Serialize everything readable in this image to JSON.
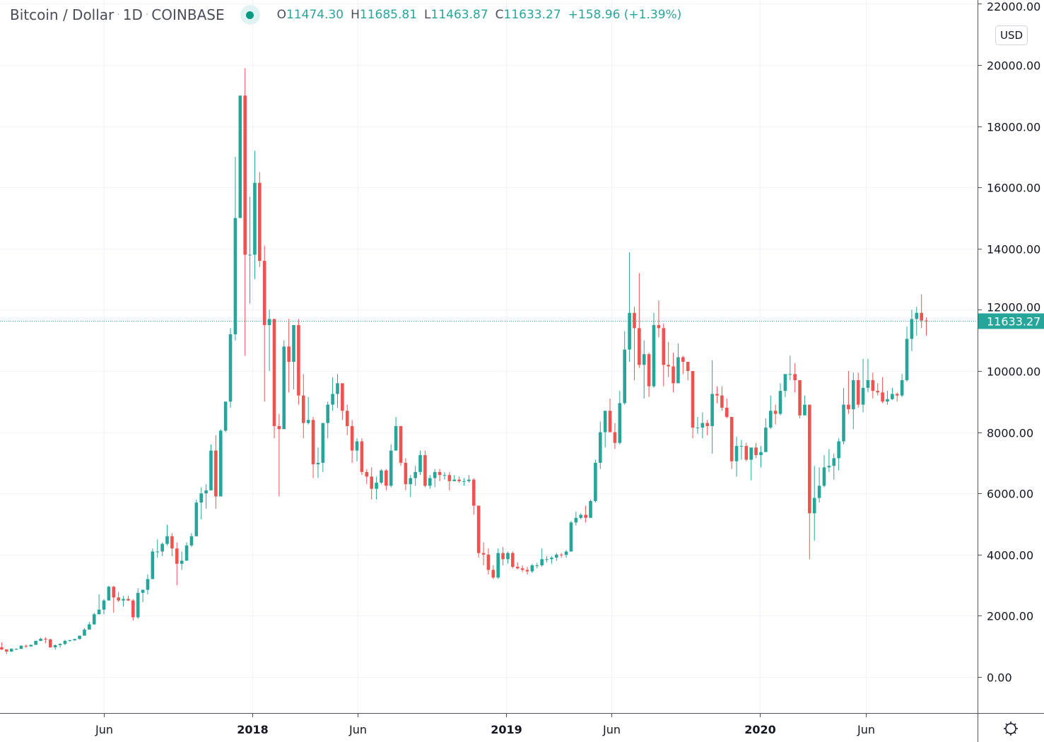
{
  "header": {
    "symbol": "Bitcoin / Dollar",
    "interval": "1D",
    "exchange": "COINBASE",
    "separator": "·",
    "market_status": "open",
    "ohlc": {
      "o_label": "O",
      "o": "11474.30",
      "h_label": "H",
      "h": "11685.81",
      "l_label": "L",
      "l": "11463.87",
      "c_label": "C",
      "c": "11633.27",
      "change": "+158.96 (+1.39%)"
    }
  },
  "currency_button": "USD",
  "settings_icon": "gear-icon",
  "colors": {
    "up": "#26a69a",
    "down": "#ef5350",
    "grid": "#f0f3fa",
    "axis": "#50535e"
  },
  "chart_data": {
    "type": "candlestick",
    "note_interval": "1W",
    "start": "2017-01-02",
    "first_open": 970,
    "ylim": [
      -1000,
      22000
    ],
    "y_ticks": [
      "0.00",
      "2000.00",
      "4000.00",
      "6000.00",
      "8000.00",
      "10000.00",
      "12000.00",
      "14000.00",
      "16000.00",
      "18000.00",
      "20000.00",
      "22000.00"
    ],
    "x_ticks": [
      {
        "label": "Jun",
        "date": "2017-06-01"
      },
      {
        "label": "2018",
        "date": "2018-01-01"
      },
      {
        "label": "Jun",
        "date": "2018-06-01"
      },
      {
        "label": "2019",
        "date": "2019-01-01"
      },
      {
        "label": "Jun",
        "date": "2019-06-01"
      },
      {
        "label": "2020",
        "date": "2020-01-01"
      },
      {
        "label": "Jun",
        "date": "2020-06-01"
      }
    ],
    "grid": true,
    "last_price": "11633.27",
    "hlc": [
      [
        1130,
        880,
        900
      ],
      [
        910,
        750,
        830
      ],
      [
        940,
        820,
        920
      ],
      [
        930,
        880,
        920
      ],
      [
        1040,
        910,
        1020
      ],
      [
        1060,
        950,
        1000
      ],
      [
        1060,
        990,
        1050
      ],
      [
        1190,
        1050,
        1180
      ],
      [
        1280,
        1170,
        1250
      ],
      [
        1300,
        1100,
        1230
      ],
      [
        1250,
        950,
        970
      ],
      [
        1060,
        890,
        1040
      ],
      [
        1100,
        960,
        1080
      ],
      [
        1210,
        1040,
        1180
      ],
      [
        1220,
        1150,
        1200
      ],
      [
        1250,
        1180,
        1240
      ],
      [
        1350,
        1230,
        1350
      ],
      [
        1600,
        1350,
        1550
      ],
      [
        1800,
        1550,
        1720
      ],
      [
        2100,
        1700,
        2050
      ],
      [
        2700,
        2050,
        2200
      ],
      [
        2550,
        2050,
        2500
      ],
      [
        2980,
        2500,
        2950
      ],
      [
        2980,
        2100,
        2600
      ],
      [
        2780,
        2450,
        2500
      ],
      [
        2650,
        2300,
        2550
      ],
      [
        2650,
        2480,
        2500
      ],
      [
        2550,
        1850,
        1950
      ],
      [
        2900,
        1900,
        2750
      ],
      [
        2850,
        2450,
        2850
      ],
      [
        3350,
        2700,
        3200
      ],
      [
        4200,
        3200,
        4100
      ],
      [
        4500,
        3900,
        4100
      ],
      [
        4400,
        3950,
        4350
      ],
      [
        4980,
        4300,
        4600
      ],
      [
        4700,
        3950,
        4200
      ],
      [
        4400,
        3000,
        3700
      ],
      [
        4100,
        3500,
        3800
      ],
      [
        4400,
        3800,
        4300
      ],
      [
        4700,
        4250,
        4600
      ],
      [
        5800,
        4600,
        5700
      ],
      [
        6200,
        5150,
        6000
      ],
      [
        6300,
        5500,
        6100
      ],
      [
        7600,
        6100,
        7400
      ],
      [
        7900,
        5500,
        5900
      ],
      [
        8100,
        5900,
        8050
      ],
      [
        9000,
        8000,
        9000
      ],
      [
        11400,
        8800,
        11200
      ],
      [
        17000,
        11000,
        15000
      ],
      [
        19000,
        15000,
        19000
      ],
      [
        19891,
        10500,
        13800
      ],
      [
        15700,
        12200,
        13800
      ],
      [
        17200,
        13000,
        16150
      ],
      [
        16500,
        13400,
        13600
      ],
      [
        14100,
        9000,
        11500
      ],
      [
        12000,
        10000,
        11700
      ],
      [
        11700,
        7800,
        8200
      ],
      [
        8600,
        5900,
        8100
      ],
      [
        11000,
        8100,
        10800
      ],
      [
        11700,
        9300,
        10300
      ],
      [
        11100,
        9400,
        11500
      ],
      [
        11700,
        8900,
        9200
      ],
      [
        9900,
        7800,
        8300
      ],
      [
        9150,
        8250,
        8400
      ],
      [
        8500,
        6500,
        6950
      ],
      [
        7500,
        6500,
        7000
      ],
      [
        8300,
        6700,
        8300
      ],
      [
        9000,
        7800,
        8900
      ],
      [
        9800,
        8700,
        9250
      ],
      [
        9900,
        8800,
        9600
      ],
      [
        9600,
        8400,
        8700
      ],
      [
        8900,
        7900,
        8200
      ],
      [
        8400,
        7000,
        7400
      ],
      [
        7800,
        7050,
        7700
      ],
      [
        7800,
        6600,
        6700
      ],
      [
        6800,
        6300,
        6550
      ],
      [
        6850,
        5800,
        6150
      ],
      [
        6550,
        5800,
        6350
      ],
      [
        6800,
        6300,
        6750
      ],
      [
        6800,
        6100,
        6250
      ],
      [
        7600,
        6200,
        7400
      ],
      [
        8500,
        7400,
        8200
      ],
      [
        8200,
        6900,
        7000
      ],
      [
        7150,
        6100,
        6300
      ],
      [
        6600,
        5880,
        6500
      ],
      [
        6900,
        6250,
        6700
      ],
      [
        7400,
        6600,
        7250
      ],
      [
        7400,
        6200,
        6250
      ],
      [
        6600,
        6150,
        6500
      ],
      [
        6800,
        6200,
        6700
      ],
      [
        6800,
        6400,
        6600
      ],
      [
        6700,
        6450,
        6600
      ],
      [
        6700,
        6100,
        6400
      ],
      [
        6600,
        6400,
        6450
      ],
      [
        6550,
        6350,
        6400
      ],
      [
        6500,
        6250,
        6400
      ],
      [
        6600,
        6350,
        6450
      ],
      [
        6500,
        5300,
        5600
      ],
      [
        5600,
        3900,
        4050
      ],
      [
        4400,
        3650,
        4000
      ],
      [
        4200,
        3350,
        3500
      ],
      [
        3650,
        3200,
        3250
      ],
      [
        4200,
        3200,
        4050
      ],
      [
        4250,
        3650,
        3850
      ],
      [
        4100,
        3700,
        4050
      ],
      [
        4100,
        3550,
        3600
      ],
      [
        3750,
        3520,
        3550
      ],
      [
        3650,
        3430,
        3500
      ],
      [
        3600,
        3350,
        3450
      ],
      [
        3700,
        3400,
        3650
      ],
      [
        3730,
        3550,
        3650
      ],
      [
        4200,
        3600,
        3850
      ],
      [
        3950,
        3750,
        3850
      ],
      [
        3950,
        3700,
        3900
      ],
      [
        4050,
        3800,
        4000
      ],
      [
        4050,
        3900,
        3990
      ],
      [
        4150,
        3900,
        4100
      ],
      [
        5100,
        4100,
        5050
      ],
      [
        5400,
        4950,
        5200
      ],
      [
        5350,
        5150,
        5300
      ],
      [
        5600,
        5050,
        5200
      ],
      [
        5800,
        5250,
        5750
      ],
      [
        7100,
        5700,
        7000
      ],
      [
        8350,
        6800,
        8000
      ],
      [
        8700,
        7500,
        8700
      ],
      [
        9100,
        8000,
        8000
      ],
      [
        8300,
        7450,
        7650
      ],
      [
        9350,
        7600,
        8950
      ],
      [
        11300,
        8900,
        10700
      ],
      [
        13880,
        10300,
        11900
      ],
      [
        12100,
        9700,
        11400
      ],
      [
        13200,
        10100,
        10200
      ],
      [
        11000,
        9100,
        10550
      ],
      [
        10600,
        9150,
        9500
      ],
      [
        11900,
        9450,
        11500
      ],
      [
        12300,
        11100,
        11400
      ],
      [
        11550,
        9500,
        10200
      ],
      [
        10950,
        9800,
        10150
      ],
      [
        10600,
        9300,
        9600
      ],
      [
        10900,
        9600,
        10450
      ],
      [
        10500,
        9900,
        10300
      ],
      [
        10300,
        9700,
        10000
      ],
      [
        10000,
        7800,
        8150
      ],
      [
        8500,
        7950,
        8150
      ],
      [
        8650,
        7800,
        8300
      ],
      [
        8400,
        7900,
        8200
      ],
      [
        10350,
        7300,
        9250
      ],
      [
        9500,
        8950,
        9200
      ],
      [
        9500,
        8700,
        8800
      ],
      [
        9100,
        8450,
        8500
      ],
      [
        8500,
        6800,
        7050
      ],
      [
        7850,
        6550,
        7550
      ],
      [
        7750,
        7100,
        7550
      ],
      [
        7650,
        7050,
        7100
      ],
      [
        7400,
        6430,
        7500
      ],
      [
        7650,
        7150,
        7250
      ],
      [
        7550,
        6850,
        7350
      ],
      [
        8450,
        7450,
        8150
      ],
      [
        9200,
        8100,
        8700
      ],
      [
        8900,
        8250,
        8600
      ],
      [
        9600,
        8550,
        9350
      ],
      [
        9900,
        9150,
        9900
      ],
      [
        10500,
        9700,
        9900
      ],
      [
        10250,
        9300,
        9700
      ],
      [
        9700,
        8450,
        8550
      ],
      [
        9200,
        8550,
        8900
      ],
      [
        8900,
        3850,
        5350
      ],
      [
        6900,
        4450,
        5850
      ],
      [
        6850,
        5700,
        6250
      ],
      [
        7250,
        6200,
        6850
      ],
      [
        7450,
        6700,
        6900
      ],
      [
        7300,
        6450,
        7150
      ],
      [
        7800,
        6750,
        7700
      ],
      [
        9450,
        7600,
        8900
      ],
      [
        10000,
        8600,
        8750
      ],
      [
        9950,
        8100,
        9700
      ],
      [
        9950,
        8800,
        8900
      ],
      [
        10400,
        8650,
        9450
      ],
      [
        10400,
        9300,
        9700
      ],
      [
        9950,
        9100,
        9350
      ],
      [
        9600,
        9200,
        9300
      ],
      [
        9800,
        8950,
        9000
      ],
      [
        9350,
        8900,
        9080
      ],
      [
        9450,
        9050,
        9250
      ],
      [
        9300,
        9000,
        9200
      ],
      [
        9900,
        9150,
        9700
      ],
      [
        11450,
        9650,
        11050
      ],
      [
        12000,
        10650,
        11700
      ],
      [
        12100,
        11150,
        11900
      ],
      [
        12500,
        11400,
        11650
      ],
      [
        11750,
        11150,
        11633.27
      ]
    ]
  }
}
